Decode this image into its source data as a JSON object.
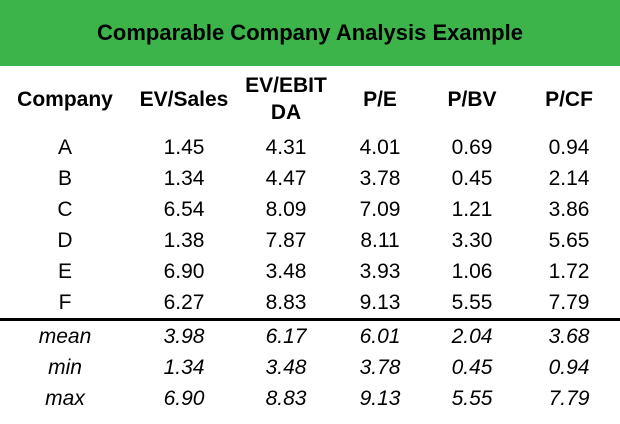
{
  "title": "Comparable Company Analysis Example",
  "colors": {
    "title_bg": "#3cb44a",
    "text": "#000000",
    "divider": "#000000"
  },
  "headers": {
    "company": "Company",
    "ev_sales": "EV/Sales",
    "ev_ebitda_line1": "EV/EBIT",
    "ev_ebitda_line2": "DA",
    "pe": "P/E",
    "pbv": "P/BV",
    "pcf": "P/CF"
  },
  "rows": [
    {
      "company": "A",
      "ev_sales": "1.45",
      "ev_ebitda": "4.31",
      "pe": "4.01",
      "pbv": "0.69",
      "pcf": "0.94"
    },
    {
      "company": "B",
      "ev_sales": "1.34",
      "ev_ebitda": "4.47",
      "pe": "3.78",
      "pbv": "0.45",
      "pcf": "2.14"
    },
    {
      "company": "C",
      "ev_sales": "6.54",
      "ev_ebitda": "8.09",
      "pe": "7.09",
      "pbv": "1.21",
      "pcf": "3.86"
    },
    {
      "company": "D",
      "ev_sales": "1.38",
      "ev_ebitda": "7.87",
      "pe": "8.11",
      "pbv": "3.30",
      "pcf": "5.65"
    },
    {
      "company": "E",
      "ev_sales": "6.90",
      "ev_ebitda": "3.48",
      "pe": "3.93",
      "pbv": "1.06",
      "pcf": "1.72"
    },
    {
      "company": "F",
      "ev_sales": "6.27",
      "ev_ebitda": "8.83",
      "pe": "9.13",
      "pbv": "5.55",
      "pcf": "7.79"
    }
  ],
  "stats": [
    {
      "label": "mean",
      "ev_sales": "3.98",
      "ev_ebitda": "6.17",
      "pe": "6.01",
      "pbv": "2.04",
      "pcf": "3.68"
    },
    {
      "label": "min",
      "ev_sales": "1.34",
      "ev_ebitda": "3.48",
      "pe": "3.78",
      "pbv": "0.45",
      "pcf": "0.94"
    },
    {
      "label": "max",
      "ev_sales": "6.90",
      "ev_ebitda": "8.83",
      "pe": "9.13",
      "pbv": "5.55",
      "pcf": "7.79"
    }
  ]
}
